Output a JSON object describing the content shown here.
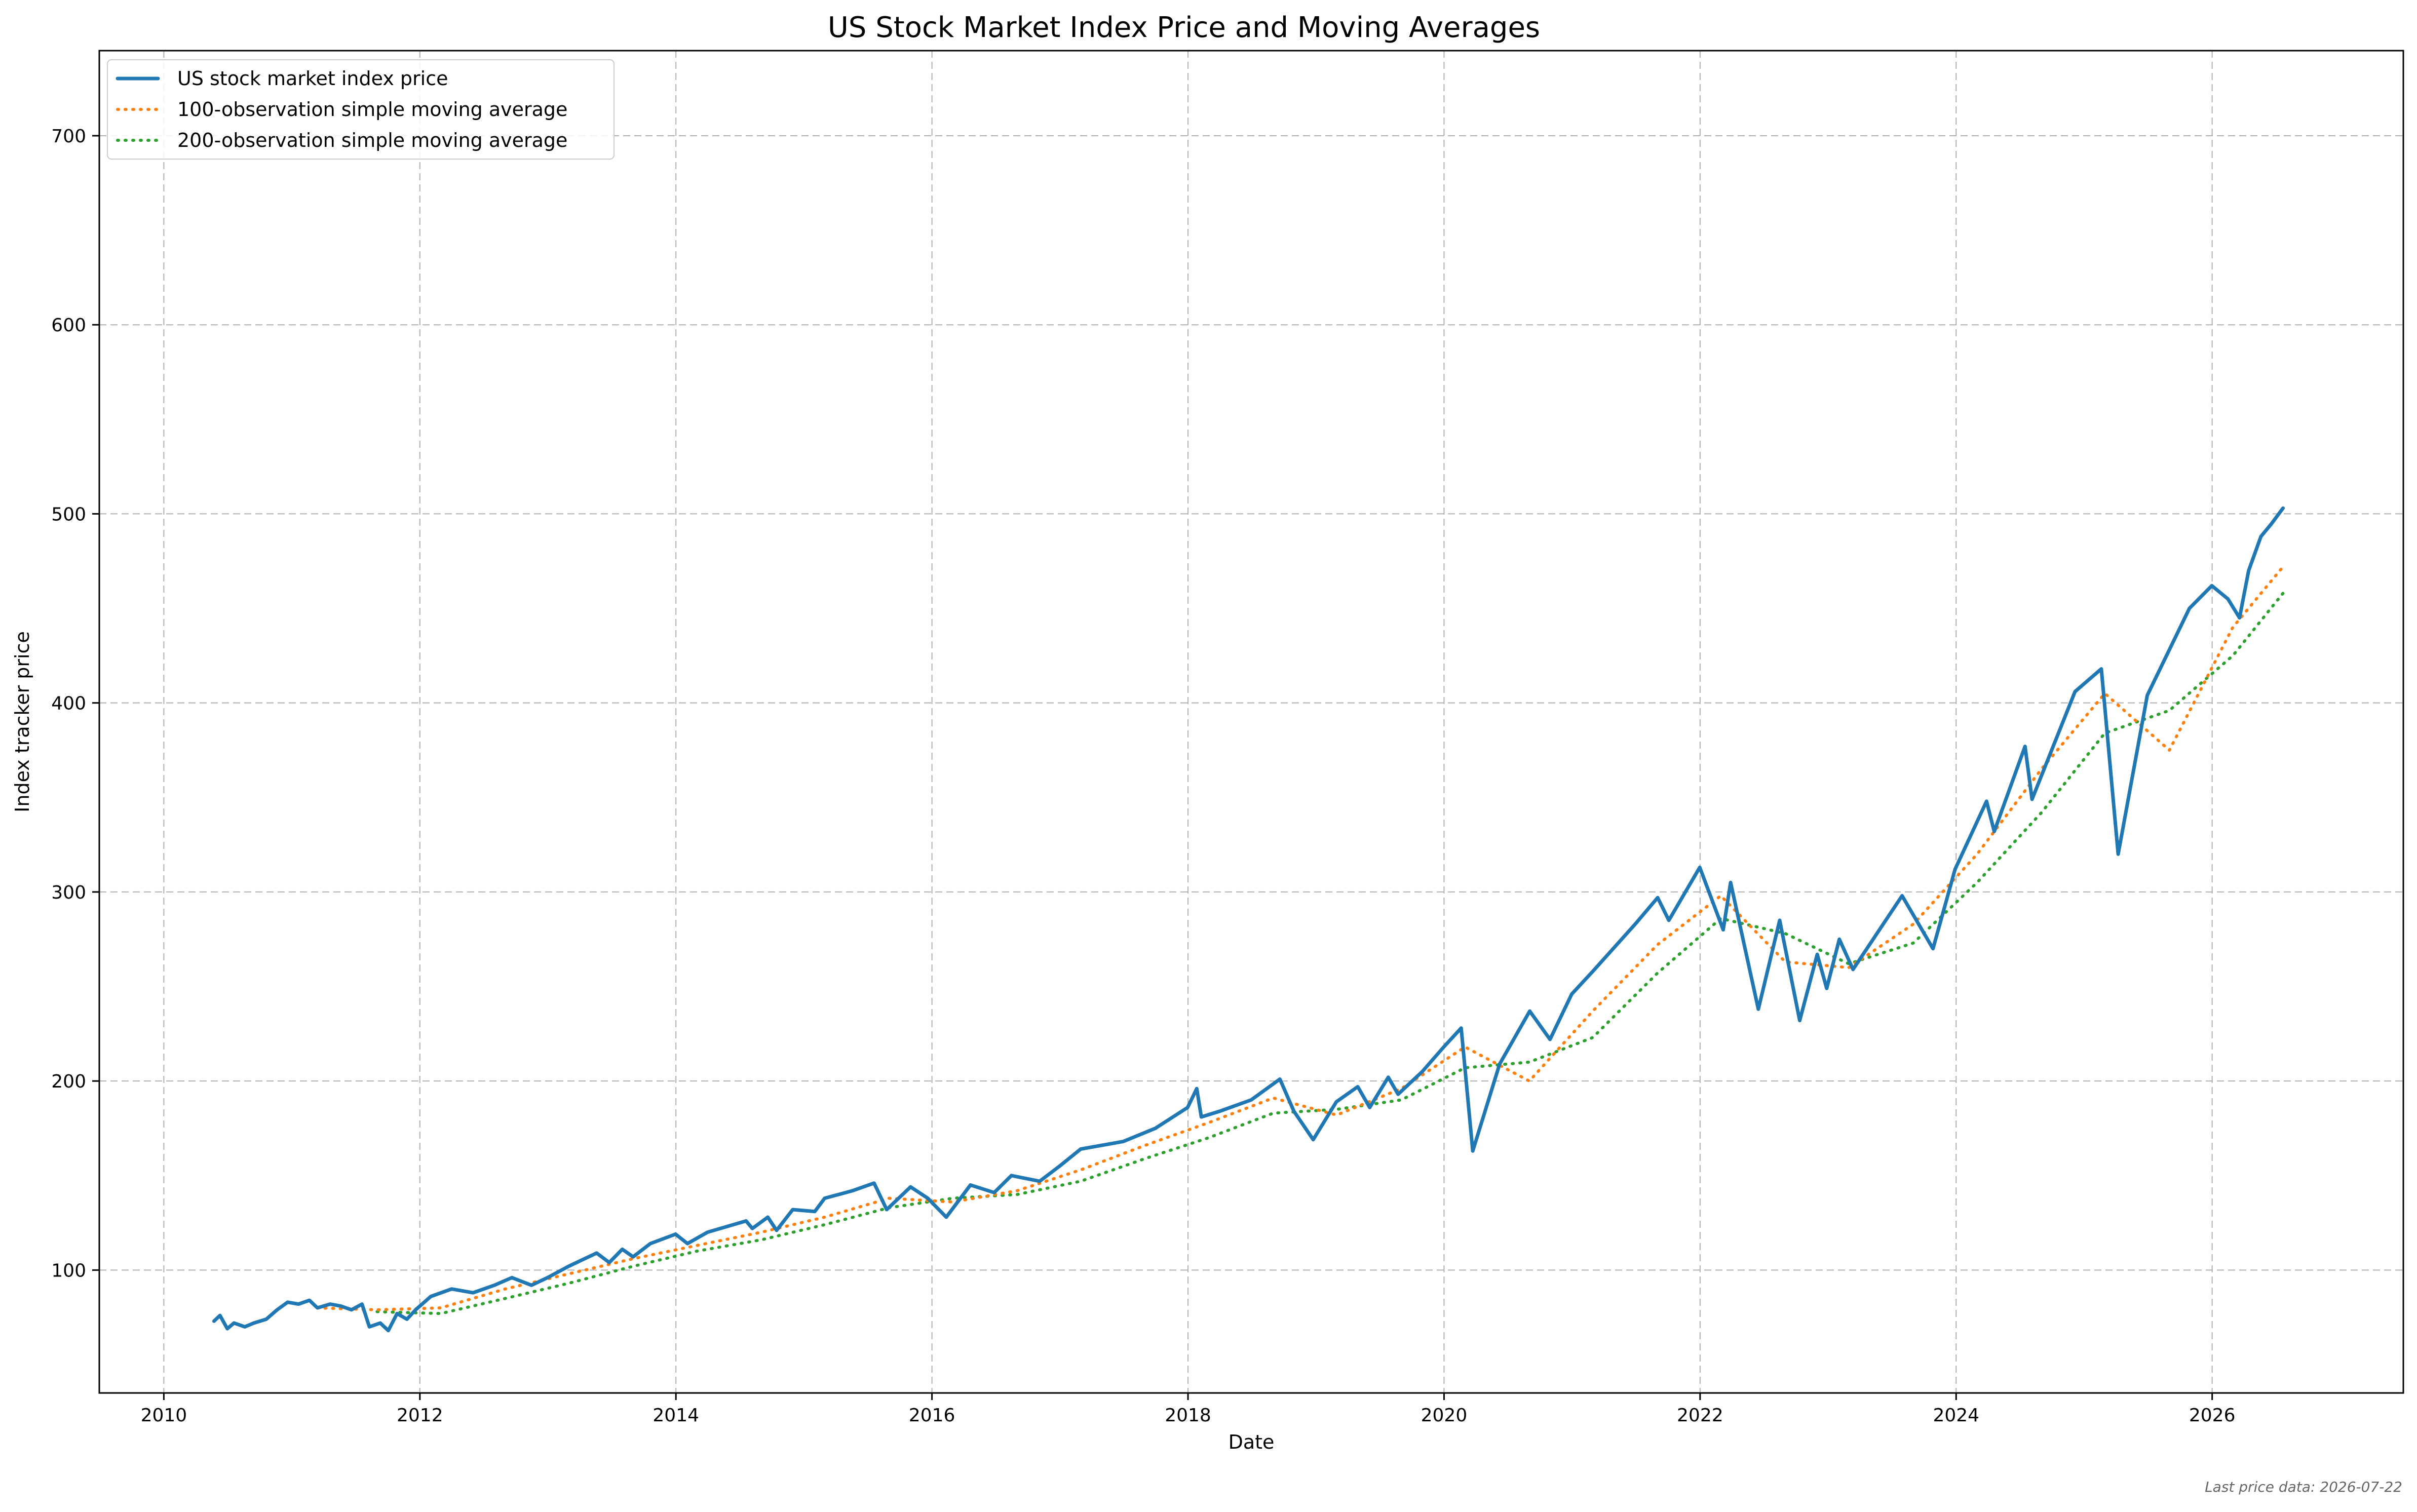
{
  "chart_data": {
    "type": "line",
    "title": "US Stock Market Index Price and Moving Averages",
    "xlabel": "Date",
    "ylabel": "Index tracker price",
    "x_ticks": [
      "2010",
      "2012",
      "2014",
      "2016",
      "2018",
      "2020",
      "2022",
      "2024",
      "2026"
    ],
    "y_ticks": [
      100,
      200,
      300,
      400,
      500,
      600,
      700
    ],
    "xlim": [
      "2009-07-01",
      "2027-06-30"
    ],
    "ylim": [
      35,
      745
    ],
    "grid": true,
    "legend_position": "top-left",
    "footnote": "Last price data: 2026-07-22",
    "series": [
      {
        "name": "US stock market index price",
        "style": "solid",
        "color": "#1f77b4",
        "points": [
          [
            "2010-05-24",
            73
          ],
          [
            "2010-06-10",
            76
          ],
          [
            "2010-07-01",
            69
          ],
          [
            "2010-07-20",
            72
          ],
          [
            "2010-08-20",
            70
          ],
          [
            "2010-09-15",
            72
          ],
          [
            "2010-10-20",
            74
          ],
          [
            "2010-11-20",
            79
          ],
          [
            "2010-12-20",
            83
          ],
          [
            "2011-01-20",
            82
          ],
          [
            "2011-02-20",
            84
          ],
          [
            "2011-03-15",
            80
          ],
          [
            "2011-04-20",
            82
          ],
          [
            "2011-05-20",
            81
          ],
          [
            "2011-06-20",
            79
          ],
          [
            "2011-07-20",
            82
          ],
          [
            "2011-08-10",
            70
          ],
          [
            "2011-09-10",
            72
          ],
          [
            "2011-10-03",
            68
          ],
          [
            "2011-10-28",
            77
          ],
          [
            "2011-11-25",
            74
          ],
          [
            "2011-12-20",
            79
          ],
          [
            "2012-02-01",
            86
          ],
          [
            "2012-04-01",
            90
          ],
          [
            "2012-06-01",
            88
          ],
          [
            "2012-08-01",
            92
          ],
          [
            "2012-09-20",
            96
          ],
          [
            "2012-11-15",
            92
          ],
          [
            "2012-12-31",
            96
          ],
          [
            "2013-03-01",
            102
          ],
          [
            "2013-05-20",
            109
          ],
          [
            "2013-06-25",
            104
          ],
          [
            "2013-08-01",
            111
          ],
          [
            "2013-09-01",
            107
          ],
          [
            "2013-10-20",
            114
          ],
          [
            "2013-12-31",
            119
          ],
          [
            "2014-02-03",
            114
          ],
          [
            "2014-04-01",
            120
          ],
          [
            "2014-07-20",
            126
          ],
          [
            "2014-08-07",
            122
          ],
          [
            "2014-09-20",
            128
          ],
          [
            "2014-10-15",
            121
          ],
          [
            "2014-11-30",
            132
          ],
          [
            "2015-02-01",
            131
          ],
          [
            "2015-03-01",
            138
          ],
          [
            "2015-05-20",
            142
          ],
          [
            "2015-07-20",
            146
          ],
          [
            "2015-08-25",
            132
          ],
          [
            "2015-11-01",
            144
          ],
          [
            "2015-12-20",
            138
          ],
          [
            "2016-02-11",
            128
          ],
          [
            "2016-04-20",
            145
          ],
          [
            "2016-06-27",
            141
          ],
          [
            "2016-08-15",
            150
          ],
          [
            "2016-11-04",
            147
          ],
          [
            "2016-12-31",
            155
          ],
          [
            "2017-03-01",
            164
          ],
          [
            "2017-06-30",
            168
          ],
          [
            "2017-09-30",
            175
          ],
          [
            "2017-12-31",
            186
          ],
          [
            "2018-01-26",
            196
          ],
          [
            "2018-02-08",
            181
          ],
          [
            "2018-04-01",
            184
          ],
          [
            "2018-06-30",
            190
          ],
          [
            "2018-09-20",
            201
          ],
          [
            "2018-10-30",
            184
          ],
          [
            "2018-12-24",
            169
          ],
          [
            "2019-02-28",
            189
          ],
          [
            "2019-04-30",
            197
          ],
          [
            "2019-06-03",
            186
          ],
          [
            "2019-07-26",
            202
          ],
          [
            "2019-08-23",
            193
          ],
          [
            "2019-10-31",
            205
          ],
          [
            "2019-12-31",
            218
          ],
          [
            "2020-02-19",
            228
          ],
          [
            "2020-03-23",
            163
          ],
          [
            "2020-06-08",
            209
          ],
          [
            "2020-09-02",
            237
          ],
          [
            "2020-10-30",
            222
          ],
          [
            "2020-12-31",
            246
          ],
          [
            "2021-03-01",
            258
          ],
          [
            "2021-06-30",
            283
          ],
          [
            "2021-09-02",
            297
          ],
          [
            "2021-10-04",
            285
          ],
          [
            "2021-12-31",
            313
          ],
          [
            "2022-03-08",
            280
          ],
          [
            "2022-03-29",
            305
          ],
          [
            "2022-06-16",
            238
          ],
          [
            "2022-08-16",
            285
          ],
          [
            "2022-10-12",
            232
          ],
          [
            "2022-12-01",
            267
          ],
          [
            "2022-12-28",
            249
          ],
          [
            "2023-02-02",
            275
          ],
          [
            "2023-03-13",
            259
          ],
          [
            "2023-07-31",
            298
          ],
          [
            "2023-10-27",
            270
          ],
          [
            "2023-12-29",
            312
          ],
          [
            "2024-03-28",
            348
          ],
          [
            "2024-04-19",
            332
          ],
          [
            "2024-07-16",
            377
          ],
          [
            "2024-08-05",
            349
          ],
          [
            "2024-12-06",
            406
          ],
          [
            "2025-02-19",
            418
          ],
          [
            "2025-04-08",
            320
          ],
          [
            "2025-06-30",
            404
          ],
          [
            "2025-10-28",
            450
          ],
          [
            "2025-12-31",
            462
          ],
          [
            "2026-02-15",
            455
          ],
          [
            "2026-03-20",
            445
          ],
          [
            "2026-04-15",
            470
          ],
          [
            "2026-05-20",
            488
          ],
          [
            "2026-06-20",
            495
          ],
          [
            "2026-07-22",
            503
          ]
        ]
      },
      {
        "name": "100-observation simple moving average",
        "style": "dotted",
        "color": "#ff7f0e",
        "points": [
          [
            "2011-03-15",
            80
          ],
          [
            "2011-09-01",
            79
          ],
          [
            "2012-03-01",
            80
          ],
          [
            "2012-09-01",
            90
          ],
          [
            "2013-03-01",
            98
          ],
          [
            "2013-09-01",
            106
          ],
          [
            "2014-03-01",
            113
          ],
          [
            "2014-09-01",
            120
          ],
          [
            "2015-03-01",
            128
          ],
          [
            "2015-09-01",
            138
          ],
          [
            "2016-03-01",
            136
          ],
          [
            "2016-09-01",
            142
          ],
          [
            "2017-03-01",
            153
          ],
          [
            "2017-09-01",
            166
          ],
          [
            "2018-03-01",
            178
          ],
          [
            "2018-09-01",
            191
          ],
          [
            "2019-03-01",
            182
          ],
          [
            "2019-09-01",
            196
          ],
          [
            "2020-03-01",
            218
          ],
          [
            "2020-09-01",
            200
          ],
          [
            "2021-03-01",
            237
          ],
          [
            "2021-09-01",
            272
          ],
          [
            "2022-03-01",
            298
          ],
          [
            "2022-09-01",
            263
          ],
          [
            "2023-03-01",
            260
          ],
          [
            "2023-09-01",
            283
          ],
          [
            "2024-03-01",
            320
          ],
          [
            "2024-09-01",
            365
          ],
          [
            "2025-03-01",
            405
          ],
          [
            "2025-09-01",
            375
          ],
          [
            "2026-03-01",
            440
          ],
          [
            "2026-07-22",
            472
          ]
        ]
      },
      {
        "name": "200-observation simple moving average",
        "style": "dotted",
        "color": "#2ca02c",
        "points": [
          [
            "2011-09-01",
            78
          ],
          [
            "2012-03-01",
            77
          ],
          [
            "2012-09-01",
            85
          ],
          [
            "2013-03-01",
            93
          ],
          [
            "2013-09-01",
            102
          ],
          [
            "2014-03-01",
            110
          ],
          [
            "2014-09-01",
            116
          ],
          [
            "2015-03-01",
            124
          ],
          [
            "2015-09-01",
            133
          ],
          [
            "2016-03-01",
            138
          ],
          [
            "2016-09-01",
            140
          ],
          [
            "2017-03-01",
            147
          ],
          [
            "2017-09-01",
            159
          ],
          [
            "2018-03-01",
            170
          ],
          [
            "2018-09-01",
            183
          ],
          [
            "2019-03-01",
            185
          ],
          [
            "2019-09-01",
            190
          ],
          [
            "2020-03-01",
            207
          ],
          [
            "2020-09-01",
            210
          ],
          [
            "2021-03-01",
            223
          ],
          [
            "2021-09-01",
            257
          ],
          [
            "2022-03-01",
            286
          ],
          [
            "2022-09-01",
            278
          ],
          [
            "2023-03-01",
            262
          ],
          [
            "2023-09-01",
            273
          ],
          [
            "2024-03-01",
            305
          ],
          [
            "2024-09-01",
            342
          ],
          [
            "2025-03-01",
            384
          ],
          [
            "2025-09-01",
            396
          ],
          [
            "2026-03-01",
            425
          ],
          [
            "2026-07-22",
            458
          ]
        ]
      }
    ]
  }
}
